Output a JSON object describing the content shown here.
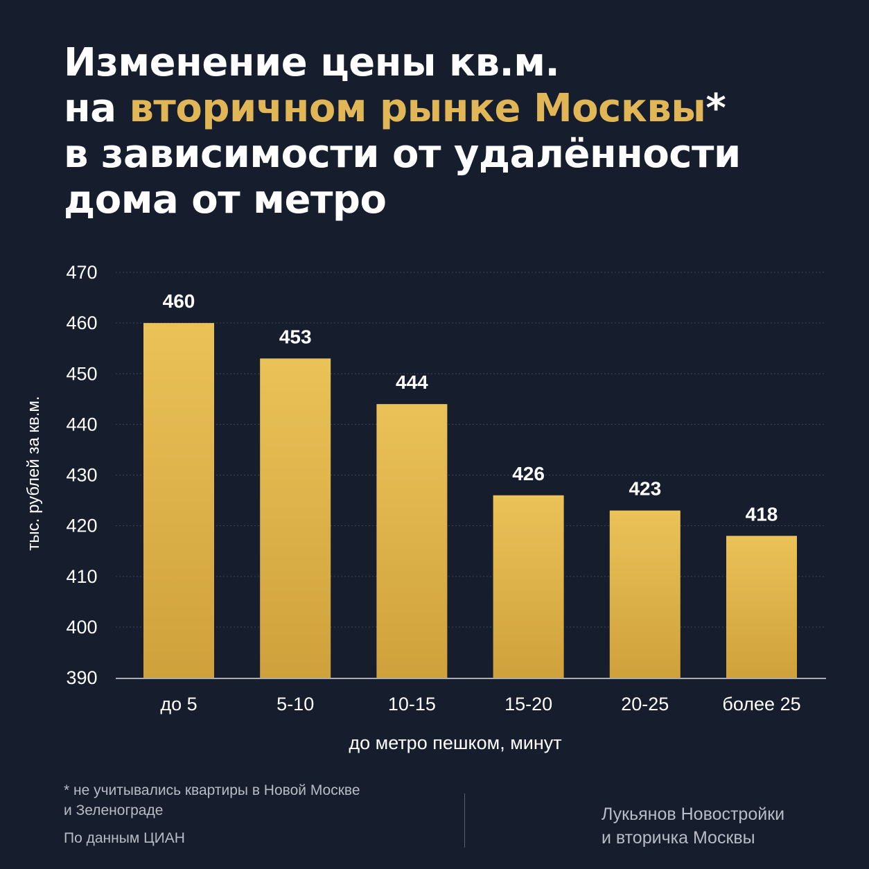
{
  "header": {
    "title_part1": "Изменение цены кв.м.",
    "title_part2": "на ",
    "title_accent": "вторичном рынке Москвы",
    "title_part3": "*",
    "title_part4": "в зависимости от удалённости",
    "title_part5": "дома от метро"
  },
  "colors": {
    "background": "#161e2e",
    "accent": "#e0b656",
    "bar": "#e6bc4f"
  },
  "chart_data": {
    "type": "bar",
    "categories": [
      "до 5",
      "5-10",
      "10-15",
      "15-20",
      "20-25",
      "более 25"
    ],
    "values": [
      460,
      453,
      444,
      426,
      423,
      418
    ],
    "data_labels": [
      "460",
      "453",
      "444",
      "426",
      "423",
      "418"
    ],
    "xlabel": "до метро пешком, минут",
    "ylabel": "тыс. рублей за кв.м.",
    "ylim": [
      390,
      470
    ],
    "yticks": [
      390,
      400,
      410,
      420,
      430,
      440,
      450,
      460,
      470
    ],
    "grid": true
  },
  "footer": {
    "footnote_line1": "* не учитывались квартиры в Новой Москве",
    "footnote_line2": "и Зеленограде",
    "source": "По данным ЦИАН",
    "brand_line1": "Лукьянов Новостройки",
    "brand_line2": "и вторичка Москвы"
  }
}
